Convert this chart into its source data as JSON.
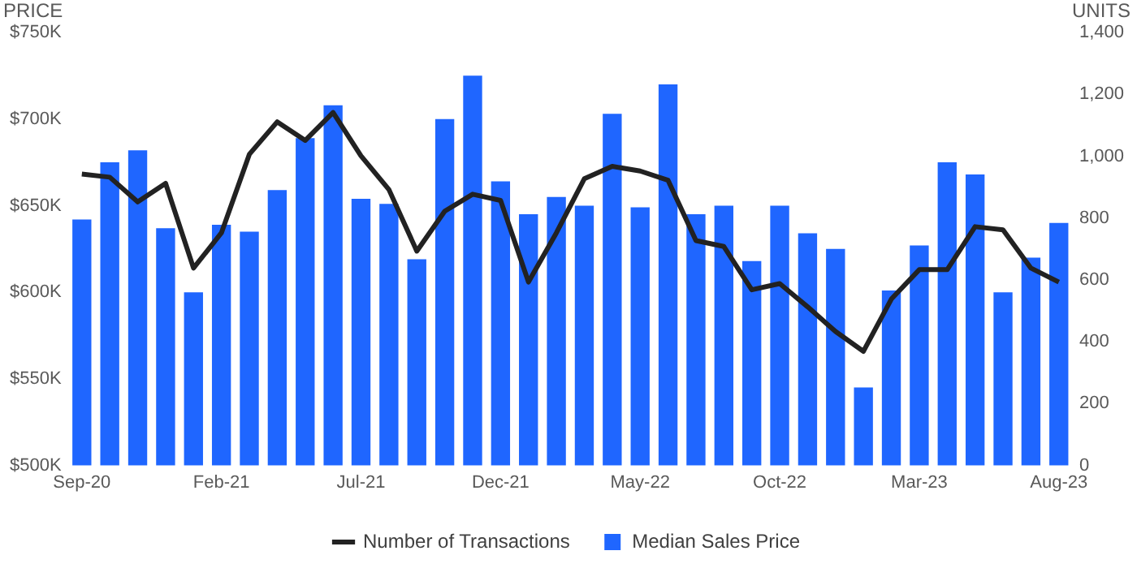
{
  "chart_data": {
    "type": "bar",
    "ylabel": "PRICE",
    "y2label": "UNITS",
    "categories": [
      "Sep-20",
      null,
      null,
      null,
      null,
      "Feb-21",
      null,
      null,
      null,
      null,
      "Jul-21",
      null,
      null,
      null,
      null,
      "Dec-21",
      null,
      null,
      null,
      null,
      "May-22",
      null,
      null,
      null,
      null,
      "Oct-22",
      null,
      null,
      null,
      null,
      "Mar-23",
      null,
      null,
      null,
      null,
      "Aug-23"
    ],
    "series": [
      {
        "name": "Number of Transactions",
        "type": "line",
        "axis": "y2",
        "color": "#222222",
        "values": [
          942,
          932,
          852,
          912,
          638,
          752,
          1006,
          1111,
          1051,
          1141,
          1001,
          892,
          693,
          822,
          877,
          857,
          593,
          752,
          927,
          967,
          952,
          922,
          727,
          708,
          568,
          588,
          513,
          433,
          369,
          538,
          633,
          633,
          772,
          762,
          638,
          593
        ]
      },
      {
        "name": "Median Sales Price",
        "axis": "y",
        "color": "#1f66ff",
        "values": [
          642000,
          675000,
          682000,
          637000,
          600000,
          639000,
          635000,
          659000,
          689000,
          708000,
          654000,
          651000,
          619000,
          700000,
          725000,
          664000,
          645000,
          655000,
          650000,
          703000,
          649000,
          720000,
          645000,
          650000,
          618000,
          650000,
          634000,
          625000,
          545000,
          601000,
          627000,
          675000,
          668000,
          600000,
          620000,
          640000
        ]
      }
    ],
    "ylim": [
      500000,
      750000
    ],
    "yticks": [
      {
        "value": 500000,
        "label": "$500K"
      },
      {
        "value": 550000,
        "label": "$550K"
      },
      {
        "value": 600000,
        "label": "$600K"
      },
      {
        "value": 650000,
        "label": "$650K"
      },
      {
        "value": 700000,
        "label": "$700K"
      },
      {
        "value": 750000,
        "label": "$750K"
      }
    ],
    "y2lim": [
      0,
      1400
    ],
    "y2ticks": [
      {
        "value": 0,
        "label": "0"
      },
      {
        "value": 200,
        "label": "200"
      },
      {
        "value": 400,
        "label": "400"
      },
      {
        "value": 600,
        "label": "600"
      },
      {
        "value": 800,
        "label": "800"
      },
      {
        "value": 1000,
        "label": "1,000"
      },
      {
        "value": 1200,
        "label": "1,200"
      },
      {
        "value": 1400,
        "label": "1,400"
      }
    ],
    "grid": false,
    "legend": "bottom"
  }
}
